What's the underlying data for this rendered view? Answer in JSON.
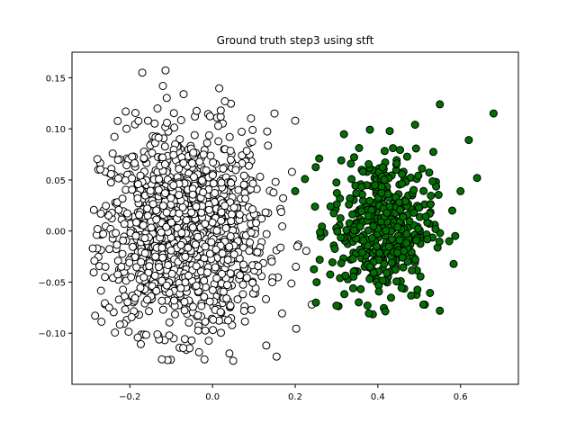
{
  "chart_data": {
    "type": "scatter",
    "title": "Ground truth step3 using stft",
    "xlabel": "",
    "ylabel": "",
    "xlim": [
      -0.34,
      0.74
    ],
    "ylim": [
      -0.15,
      0.175
    ],
    "xticks": [
      -0.2,
      0.0,
      0.2,
      0.4,
      0.6
    ],
    "xtick_labels": [
      "−0.2",
      "0.0",
      "0.2",
      "0.4",
      "0.6"
    ],
    "yticks": [
      -0.1,
      -0.05,
      0.0,
      0.05,
      0.1,
      0.15
    ],
    "ytick_labels": [
      "−0.10",
      "−0.05",
      "0.00",
      "0.05",
      "0.10",
      "0.15"
    ],
    "grid": false,
    "series": [
      {
        "color": "#ffffff",
        "edgecolor": "#000000",
        "cluster": {
          "cx": -0.07,
          "cy": 0.0,
          "sx": 0.1,
          "sy": 0.048,
          "n": 1300,
          "xmin": -0.29,
          "xmax": 0.24,
          "ymin": -0.13,
          "ymax": 0.16
        },
        "points": [
          [
            -0.17,
            0.155
          ],
          [
            -0.12,
            0.142
          ],
          [
            -0.21,
            0.117
          ],
          [
            -0.07,
            0.134
          ],
          [
            0.03,
            0.127
          ],
          [
            0.02,
            0.118
          ],
          [
            -0.29,
            -0.017
          ],
          [
            -0.27,
            0.017
          ],
          [
            0.05,
            -0.127
          ],
          [
            0.2,
            0.108
          ],
          [
            0.15,
            0.115
          ],
          [
            -0.25,
            -0.075
          ],
          [
            0.13,
            -0.112
          ],
          [
            0.24,
            -0.072
          ],
          [
            -0.26,
            -0.045
          ]
        ]
      },
      {
        "color": "#007000",
        "edgecolor": "#000000",
        "cluster": {
          "cx": 0.41,
          "cy": 0.005,
          "sx": 0.062,
          "sy": 0.036,
          "n": 430,
          "xmin": 0.22,
          "xmax": 0.68,
          "ymin": -0.085,
          "ymax": 0.12
        },
        "points": [
          [
            0.55,
            0.124
          ],
          [
            0.68,
            0.115
          ],
          [
            0.62,
            0.089
          ],
          [
            0.49,
            0.104
          ],
          [
            0.3,
            -0.073
          ],
          [
            0.25,
            -0.07
          ],
          [
            0.55,
            -0.078
          ],
          [
            0.51,
            -0.072
          ],
          [
            0.6,
            0.039
          ],
          [
            0.58,
            0.02
          ],
          [
            0.2,
            0.039
          ],
          [
            0.64,
            0.052
          ]
        ]
      }
    ]
  }
}
